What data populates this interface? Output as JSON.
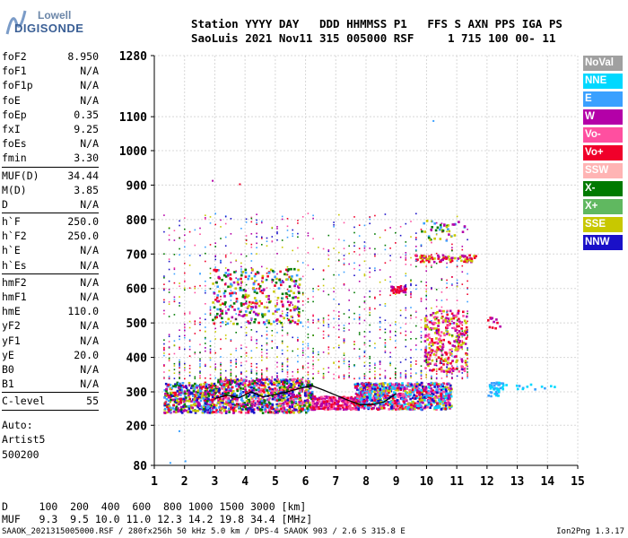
{
  "logo": {
    "line1": "Lowell",
    "line2": "DIGISONDE"
  },
  "header": {
    "line1": "Station YYYY DAY   DDD HHMMSS P1   FFS S AXN PPS IGA PS",
    "line2": "SaoLuis 2021 Nov11 315 005000 RSF     1 715 100 00- 11"
  },
  "params": {
    "group1": [
      {
        "k": "foF2",
        "v": "8.950"
      },
      {
        "k": "foF1",
        "v": "N/A"
      },
      {
        "k": "foF1p",
        "v": "N/A"
      },
      {
        "k": "foE",
        "v": "N/A"
      },
      {
        "k": "foEp",
        "v": "0.35"
      },
      {
        "k": "fxI",
        "v": "9.25"
      },
      {
        "k": "foEs",
        "v": "N/A"
      },
      {
        "k": "fmin",
        "v": "3.30"
      }
    ],
    "group2": [
      {
        "k": "MUF(D)",
        "v": "34.44"
      },
      {
        "k": "M(D)",
        "v": "3.85"
      },
      {
        "k": "D",
        "v": "N/A"
      }
    ],
    "group3": [
      {
        "k": "h`F",
        "v": "250.0"
      },
      {
        "k": "h`F2",
        "v": "250.0"
      },
      {
        "k": "h`E",
        "v": "N/A"
      },
      {
        "k": "h`Es",
        "v": "N/A"
      }
    ],
    "group4": [
      {
        "k": "hmF2",
        "v": "N/A"
      },
      {
        "k": "hmF1",
        "v": "N/A"
      },
      {
        "k": "hmE",
        "v": "110.0"
      },
      {
        "k": "yF2",
        "v": "N/A"
      },
      {
        "k": "yF1",
        "v": "N/A"
      },
      {
        "k": "yE",
        "v": "20.0"
      },
      {
        "k": "B0",
        "v": "N/A"
      },
      {
        "k": "B1",
        "v": "N/A"
      }
    ],
    "group5": [
      {
        "k": "C-level",
        "v": "55"
      }
    ]
  },
  "artist": {
    "line1": "Auto:",
    "line2": "Artist5",
    "line3": "500200"
  },
  "legend": [
    {
      "label": "NoVal",
      "color": "#a0a0a0"
    },
    {
      "label": "NNE",
      "color": "#00d8ff"
    },
    {
      "label": "E",
      "color": "#3aa0ff"
    },
    {
      "label": "W",
      "color": "#b400a8"
    },
    {
      "label": "Vo-",
      "color": "#ff4fa0"
    },
    {
      "label": "Vo+",
      "color": "#f0002a"
    },
    {
      "label": "SSW",
      "color": "#ffb4b4"
    },
    {
      "label": "X-",
      "color": "#007a00"
    },
    {
      "label": "X+",
      "color": "#60b860"
    },
    {
      "label": "SSE",
      "color": "#c8c800"
    },
    {
      "label": "NNW",
      "color": "#1a10c8"
    }
  ],
  "footer": {
    "d_line": "D     100  200  400  600  800 1000 1500 3000 [km]",
    "muf_line": "MUF   9.3  9.5 10.0 11.0 12.3 14.2 19.8 34.4 [MHz]",
    "source": "SAAOK_2021315005000.RSF / 280fx256h 50 kHz 5.0 km / DPS-4 SAAOK 903 / 2.6 S 315.8 E",
    "version": "Ion2Png 1.3.17"
  },
  "chart_data": {
    "type": "scatter",
    "xlim": [
      1,
      15
    ],
    "ylim": [
      80,
      1280
    ],
    "x_ticks": [
      "1",
      "2",
      "3",
      "4",
      "5",
      "6",
      "7",
      "8",
      "9",
      "10",
      "11",
      "12",
      "13",
      "14",
      "15"
    ],
    "y_ticks": [
      "80",
      "200",
      "300",
      "400",
      "500",
      "600",
      "700",
      "800",
      "900",
      "1000",
      "1100",
      "1280"
    ],
    "y_tick_values": [
      80,
      200,
      300,
      400,
      500,
      600,
      700,
      800,
      900,
      1000,
      1100,
      1280
    ],
    "grid": true,
    "legend_position": "right",
    "trace_series_name": "profile",
    "clusters": [
      {
        "x": [
          1.3,
          3.0
        ],
        "y": [
          240,
          330
        ],
        "colors": [
          "#b400a8",
          "#3aa0ff",
          "#f0002a",
          "#1a10c8",
          "#007a00",
          "#c8c800"
        ],
        "n": 420
      },
      {
        "x": [
          3.0,
          6.2
        ],
        "y": [
          240,
          340
        ],
        "colors": [
          "#b400a8",
          "#ff4fa0",
          "#f0002a",
          "#3aa0ff",
          "#c8c800",
          "#007a00",
          "#1a10c8"
        ],
        "n": 900
      },
      {
        "x": [
          6.2,
          7.8
        ],
        "y": [
          250,
          290
        ],
        "colors": [
          "#f0002a",
          "#b400a8",
          "#ff4fa0"
        ],
        "n": 250
      },
      {
        "x": [
          7.6,
          10.8
        ],
        "y": [
          250,
          330
        ],
        "colors": [
          "#3aa0ff",
          "#00d8ff",
          "#b400a8",
          "#f0002a",
          "#1a10c8",
          "#ff4fa0",
          "#c8c800"
        ],
        "n": 900
      },
      {
        "x": [
          12.0,
          12.5
        ],
        "y": [
          290,
          330
        ],
        "colors": [
          "#00d8ff",
          "#3aa0ff"
        ],
        "n": 40
      },
      {
        "x": [
          12.5,
          14.5
        ],
        "y": [
          310,
          325
        ],
        "colors": [
          "#3aa0ff",
          "#00d8ff"
        ],
        "n": 14
      },
      {
        "x": [
          2.9,
          5.8
        ],
        "y": [
          500,
          660
        ],
        "colors": [
          "#b400a8",
          "#f0002a",
          "#c8c800",
          "#007a00",
          "#3aa0ff"
        ],
        "n": 300
      },
      {
        "x": [
          9.9,
          11.3
        ],
        "y": [
          360,
          540
        ],
        "colors": [
          "#b400a8",
          "#f0002a",
          "#ff4fa0",
          "#c8c800"
        ],
        "n": 280
      },
      {
        "x": [
          8.8,
          9.3
        ],
        "y": [
          590,
          610
        ],
        "colors": [
          "#b400a8",
          "#f0002a"
        ],
        "n": 40
      },
      {
        "x": [
          9.6,
          11.6
        ],
        "y": [
          680,
          700
        ],
        "colors": [
          "#c8c800",
          "#b400a8",
          "#f0002a"
        ],
        "n": 90
      },
      {
        "x": [
          9.8,
          11.3
        ],
        "y": [
          740,
          800
        ],
        "colors": [
          "#007a00",
          "#b400a8",
          "#3aa0ff",
          "#c8c800"
        ],
        "n": 40
      },
      {
        "x": [
          12.0,
          12.4
        ],
        "y": [
          480,
          520
        ],
        "colors": [
          "#f0002a",
          "#b400a8"
        ],
        "n": 12
      },
      {
        "x": [
          1.3,
          11.5
        ],
        "y": [
          340,
          820
        ],
        "colors": [
          "#b400a8",
          "#f0002a",
          "#c8c800",
          "#3aa0ff",
          "#007a00",
          "#ff4fa0",
          "#1a10c8"
        ],
        "n": 1400
      }
    ],
    "trace": {
      "x": [
        3.0,
        3.4,
        3.8,
        4.2,
        4.6,
        5.0,
        5.4,
        5.8,
        6.2,
        6.6,
        7.0,
        7.4,
        7.8,
        8.2,
        8.6,
        9.0
      ],
      "y": [
        280,
        290,
        282,
        300,
        285,
        292,
        300,
        310,
        318,
        305,
        290,
        275,
        262,
        262,
        270,
        295
      ]
    }
  }
}
